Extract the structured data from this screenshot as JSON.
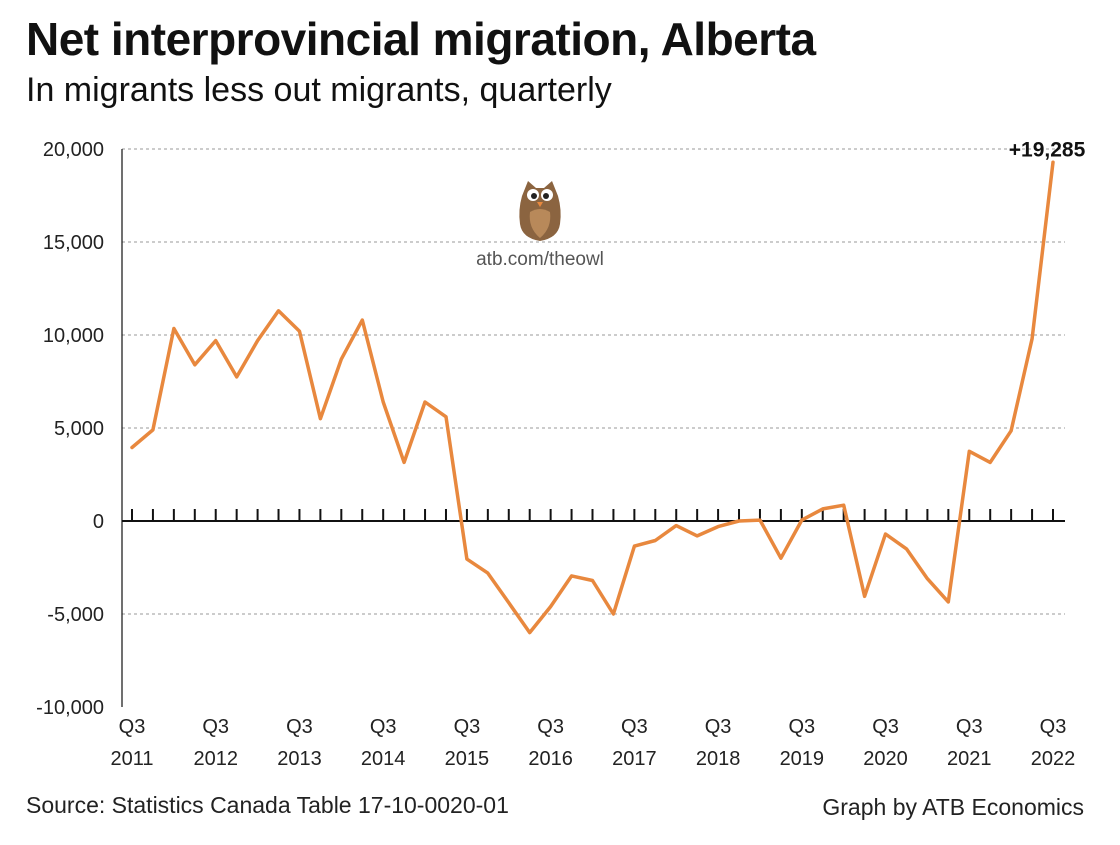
{
  "header": {
    "title": "Net interprovincial migration, Alberta",
    "subtitle": "In migrants less out migrants, quarterly"
  },
  "footer": {
    "source": "Source: Statistics Canada Table 17-10-0020-01",
    "credit": "Graph by ATB Economics"
  },
  "watermark": {
    "text": "atb.com/theowl",
    "icon": "owl-icon"
  },
  "colors": {
    "line": "#E8883E",
    "grid": "#999999",
    "axis": "#111111"
  },
  "chart_data": {
    "type": "line",
    "title": "Net interprovincial migration, Alberta",
    "subtitle": "In migrants less out migrants, quarterly",
    "xlabel": "",
    "ylabel": "",
    "ylim": [
      -10000,
      20000
    ],
    "yticks": [
      20000,
      15000,
      10000,
      5000,
      0,
      -5000,
      -10000
    ],
    "ytick_labels": [
      "20,000",
      "15,000",
      "10,000",
      "5,000",
      "0",
      "-5,000",
      "-10,000"
    ],
    "grid": true,
    "x_tick_labels": [
      {
        "q": "Q3",
        "year": "2011",
        "index": 0
      },
      {
        "q": "Q3",
        "year": "2012",
        "index": 4
      },
      {
        "q": "Q3",
        "year": "2013",
        "index": 8
      },
      {
        "q": "Q3",
        "year": "2014",
        "index": 12
      },
      {
        "q": "Q3",
        "year": "2015",
        "index": 16
      },
      {
        "q": "Q3",
        "year": "2016",
        "index": 20
      },
      {
        "q": "Q3",
        "year": "2017",
        "index": 24
      },
      {
        "q": "Q3",
        "year": "2018",
        "index": 28
      },
      {
        "q": "Q3",
        "year": "2019",
        "index": 32
      },
      {
        "q": "Q3",
        "year": "2020",
        "index": 36
      },
      {
        "q": "Q3",
        "year": "2021",
        "index": 40
      },
      {
        "q": "Q3",
        "year": "2022",
        "index": 44
      }
    ],
    "x": [
      "Q3 2011",
      "Q4 2011",
      "Q1 2012",
      "Q2 2012",
      "Q3 2012",
      "Q4 2012",
      "Q1 2013",
      "Q2 2013",
      "Q3 2013",
      "Q4 2013",
      "Q1 2014",
      "Q2 2014",
      "Q3 2014",
      "Q4 2014",
      "Q1 2015",
      "Q2 2015",
      "Q3 2015",
      "Q4 2015",
      "Q1 2016",
      "Q2 2016",
      "Q3 2016",
      "Q4 2016",
      "Q1 2017",
      "Q2 2017",
      "Q3 2017",
      "Q4 2017",
      "Q1 2018",
      "Q2 2018",
      "Q3 2018",
      "Q4 2018",
      "Q1 2019",
      "Q2 2019",
      "Q3 2019",
      "Q4 2019",
      "Q1 2020",
      "Q2 2020",
      "Q3 2020",
      "Q4 2020",
      "Q1 2021",
      "Q2 2021",
      "Q3 2021",
      "Q4 2021",
      "Q1 2022",
      "Q2 2022",
      "Q3 2022"
    ],
    "series": [
      {
        "name": "Net interprovincial migration",
        "values": [
          3950,
          4900,
          10350,
          8400,
          9700,
          7750,
          9700,
          11300,
          10200,
          5500,
          8700,
          10800,
          6400,
          3150,
          6400,
          5600,
          -2050,
          -2800,
          -4400,
          -6000,
          -4600,
          -2950,
          -3200,
          -5000,
          -1350,
          -1050,
          -250,
          -800,
          -300,
          0,
          50,
          -2000,
          50,
          650,
          850,
          -4050,
          -700,
          -1500,
          -3100,
          -4350,
          3750,
          3150,
          4850,
          9800,
          19285
        ]
      }
    ],
    "annotations": [
      {
        "text": "+19,285",
        "index": 44
      }
    ]
  }
}
